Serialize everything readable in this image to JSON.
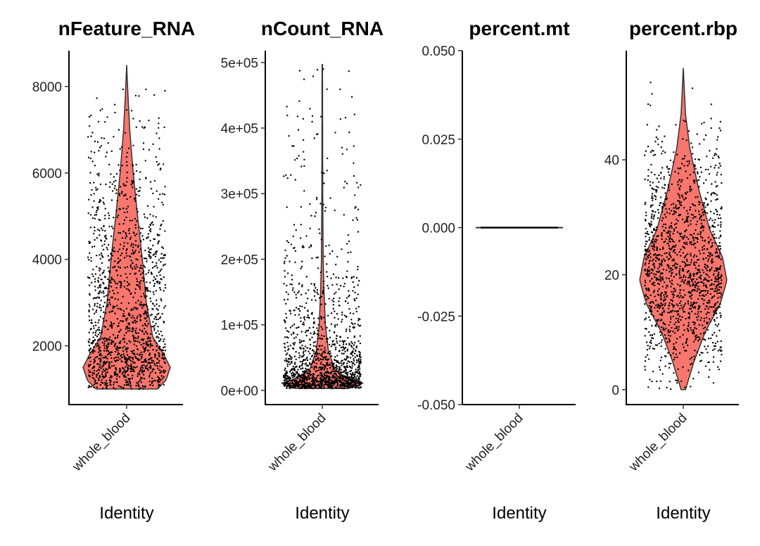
{
  "chart_data": [
    {
      "type": "violin",
      "title": "nFeature_RNA",
      "xlabel": "Identity",
      "categories": [
        "whole_blood"
      ],
      "ylim": [
        640,
        8830
      ],
      "yticks": [
        2000,
        4000,
        6000,
        8000
      ],
      "ytick_labels": [
        "2000",
        "4000",
        "6000",
        "8000"
      ],
      "density_profile": [
        [
          1000,
          0.7
        ],
        [
          1200,
          0.9
        ],
        [
          1500,
          1.0
        ],
        [
          1800,
          0.85
        ],
        [
          2200,
          0.6
        ],
        [
          3000,
          0.45
        ],
        [
          4000,
          0.36
        ],
        [
          5000,
          0.25
        ],
        [
          6000,
          0.15
        ],
        [
          7000,
          0.07
        ],
        [
          7800,
          0.03
        ],
        [
          8500,
          0
        ]
      ],
      "value_range": [
        1000,
        8500
      ]
    },
    {
      "type": "violin",
      "title": "nCount_RNA",
      "xlabel": "Identity",
      "categories": [
        "whole_blood"
      ],
      "ylim": [
        -21600,
        518000
      ],
      "yticks": [
        0,
        100000,
        200000,
        300000,
        400000,
        500000
      ],
      "ytick_labels": [
        "0e+00",
        "1e+05",
        "2e+05",
        "3e+05",
        "4e+05",
        "5e+05"
      ],
      "density_profile": [
        [
          3000,
          0.6
        ],
        [
          10000,
          1.0
        ],
        [
          15000,
          0.7
        ],
        [
          30000,
          0.3
        ],
        [
          60000,
          0.14
        ],
        [
          100000,
          0.07
        ],
        [
          150000,
          0.04
        ],
        [
          200000,
          0.02
        ],
        [
          300000,
          0.01
        ],
        [
          497000,
          0.005
        ]
      ],
      "value_range": [
        3000,
        497000
      ]
    },
    {
      "type": "violin",
      "title": "percent.mt",
      "xlabel": "Identity",
      "categories": [
        "whole_blood"
      ],
      "ylim": [
        -0.05,
        0.05
      ],
      "yticks": [
        -0.05,
        -0.025,
        0,
        0.025,
        0.05
      ],
      "ytick_labels": [
        "-0.050",
        "-0.025",
        "0.000",
        "0.025",
        "0.050"
      ],
      "density_profile": [
        [
          0,
          1
        ]
      ],
      "value_range": [
        0,
        0
      ]
    },
    {
      "type": "violin",
      "title": "percent.rbp",
      "xlabel": "Identity",
      "categories": [
        "whole_blood"
      ],
      "ylim": [
        -2.6,
        59
      ],
      "yticks": [
        0,
        20,
        40
      ],
      "ytick_labels": [
        "0",
        "20",
        "40"
      ],
      "density_profile": [
        [
          0,
          0.05
        ],
        [
          5,
          0.25
        ],
        [
          10,
          0.5
        ],
        [
          15,
          0.85
        ],
        [
          19,
          1.0
        ],
        [
          23,
          0.9
        ],
        [
          28,
          0.6
        ],
        [
          35,
          0.35
        ],
        [
          42,
          0.15
        ],
        [
          48,
          0.05
        ],
        [
          56,
          0
        ]
      ],
      "value_range": [
        0,
        56
      ]
    }
  ],
  "colors": {
    "violin_fill": "#F8766D",
    "violin_outline": "#333333",
    "points": "#000000"
  }
}
